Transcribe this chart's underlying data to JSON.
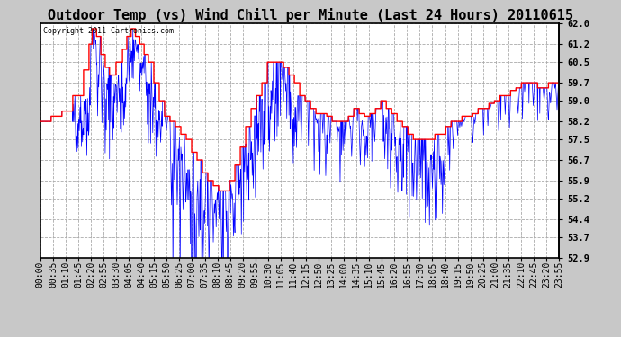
{
  "title": "Outdoor Temp (vs) Wind Chill per Minute (Last 24 Hours) 20110615",
  "copyright": "Copyright 2011 Cartronics.com",
  "yticks": [
    52.9,
    53.7,
    54.4,
    55.2,
    55.9,
    56.7,
    57.5,
    58.2,
    59.0,
    59.7,
    60.5,
    61.2,
    62.0
  ],
  "xtick_labels": [
    "00:00",
    "00:35",
    "01:10",
    "01:45",
    "02:20",
    "02:55",
    "03:30",
    "04:05",
    "04:40",
    "05:15",
    "05:50",
    "06:25",
    "07:00",
    "07:35",
    "08:10",
    "08:45",
    "09:20",
    "09:55",
    "10:30",
    "11:05",
    "11:40",
    "12:15",
    "12:50",
    "13:25",
    "14:00",
    "14:35",
    "15:10",
    "15:45",
    "16:20",
    "16:55",
    "17:30",
    "18:05",
    "18:40",
    "19:15",
    "19:50",
    "20:25",
    "21:00",
    "21:35",
    "22:10",
    "22:45",
    "23:20",
    "23:55"
  ],
  "bg_color": "#c8c8c8",
  "plot_bg_color": "#ffffff",
  "grid_color": "#aaaaaa",
  "temp_color": "#ff0000",
  "wind_color": "#0000ff",
  "title_fontsize": 11,
  "tick_fontsize": 7,
  "ymin": 52.9,
  "ymax": 62.0
}
